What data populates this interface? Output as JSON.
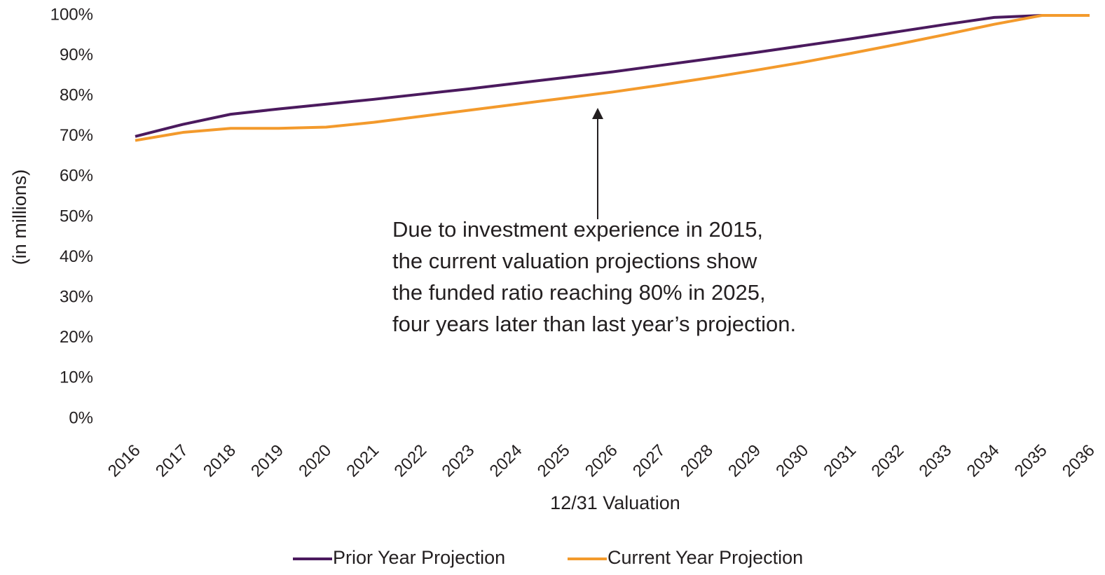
{
  "chart_data": {
    "type": "line",
    "categories": [
      "2016",
      "2017",
      "2018",
      "2019",
      "2020",
      "2021",
      "2022",
      "2023",
      "2024",
      "2025",
      "2026",
      "2027",
      "2028",
      "2029",
      "2030",
      "2031",
      "2032",
      "2033",
      "2034",
      "2035",
      "2036"
    ],
    "series": [
      {
        "name": "Prior Year Projection",
        "color": "#4b1a5e",
        "values": [
          70,
          73,
          75.5,
          76.8,
          78,
          79.2,
          80.5,
          81.8,
          83.2,
          84.6,
          86,
          87.6,
          89.2,
          90.8,
          92.5,
          94.2,
          96,
          97.8,
          99.5,
          100,
          100
        ]
      },
      {
        "name": "Current Year Projection",
        "color": "#f39a2c",
        "values": [
          69,
          71,
          72,
          72,
          72.3,
          73.5,
          75,
          76.5,
          78,
          79.5,
          81,
          82.7,
          84.5,
          86.4,
          88.4,
          90.6,
          92.9,
          95.3,
          97.8,
          100,
          100
        ]
      }
    ],
    "ylim": [
      0,
      100
    ],
    "yticks": [
      {
        "value": 0,
        "label": "0%"
      },
      {
        "value": 10,
        "label": "10%"
      },
      {
        "value": 20,
        "label": "20%"
      },
      {
        "value": 30,
        "label": "30%"
      },
      {
        "value": 40,
        "label": "40%"
      },
      {
        "value": 50,
        "label": "50%"
      },
      {
        "value": 60,
        "label": "60%"
      },
      {
        "value": 70,
        "label": "70%"
      },
      {
        "value": 80,
        "label": "80%"
      },
      {
        "value": 90,
        "label": "90%"
      },
      {
        "value": 100,
        "label": "100%"
      }
    ],
    "grid": false,
    "y_label": "(in millions)",
    "x_label": "12/31 Valuation",
    "annotation": [
      "Due to investment experience in 2015,",
      "the current valuation projections show",
      "the funded ratio reaching 80% in 2025,",
      "four years later than last year’s projection."
    ],
    "legend": "bottom"
  }
}
